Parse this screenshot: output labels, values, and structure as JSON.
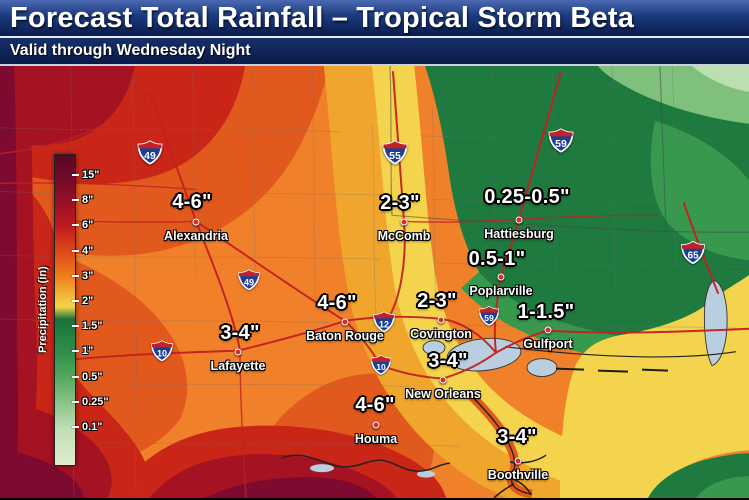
{
  "header": {
    "title": "Forecast Total Rainfall – Tropical Storm Beta",
    "subtitle": "Valid through Wednesday Night"
  },
  "legend": {
    "title": "Precipitation (in)",
    "ticks": [
      "15\"",
      "8\"",
      "6\"",
      "4\"",
      "3\"",
      "2\"",
      "1.5\"",
      "1\"",
      "0.5\"",
      "0.25\"",
      "0.1\""
    ]
  },
  "map": {
    "cities": [
      {
        "name": "Alexandria",
        "rainfall": "4-6\""
      },
      {
        "name": "McComb",
        "rainfall": "2-3\""
      },
      {
        "name": "Hattiesburg",
        "rainfall": "0.25-0.5\""
      },
      {
        "name": "Poplarville",
        "rainfall": "0.5-1\""
      },
      {
        "name": "Baton Rouge",
        "rainfall": "4-6\""
      },
      {
        "name": "Covington",
        "rainfall": "2-3\""
      },
      {
        "name": "Lafayette",
        "rainfall": "3-4\""
      },
      {
        "name": "Gulfport",
        "rainfall": "1-1.5\""
      },
      {
        "name": "New Orleans",
        "rainfall": "3-4\""
      },
      {
        "name": "Houma",
        "rainfall": "4-6\""
      },
      {
        "name": "Boothville",
        "rainfall": "3-4\""
      }
    ],
    "highway_shields": [
      "49",
      "55",
      "59",
      "65",
      "49",
      "59",
      "12",
      "10",
      "10"
    ],
    "scale_colors": {
      "maroon_15in": "#7e0a30",
      "dark_red_8in": "#a51222",
      "red_6in": "#c92617",
      "red_orange_4in": "#e2591d",
      "orange_3in": "#f1802a",
      "yellow_orange": "#f0a62c",
      "yellow_2in": "#f4d44c",
      "dark_green_1_5in": "#1e7a3e",
      "green_1in": "#37994e",
      "light_green_0_25in": "#7fc07c",
      "pale_green_0_1in": "#bcdfb2",
      "water": "#b9cfdf",
      "highway_red": "#c32121"
    }
  }
}
